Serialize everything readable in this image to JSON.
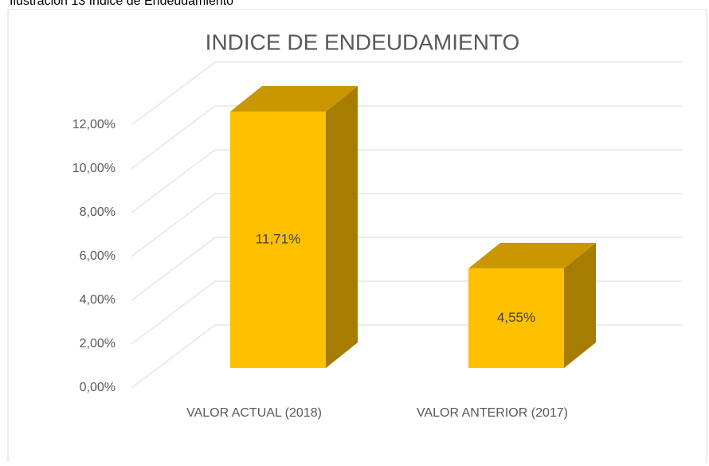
{
  "chart_data": {
    "type": "bar3d",
    "caption": "Ilustración 13 Indice de Endeudamiento",
    "title": "INDICE DE ENDEUDAMIENTO",
    "categories": [
      "VALOR ACTUAL (2018)",
      "VALOR ANTERIOR (2017)"
    ],
    "values": [
      11.71,
      4.55
    ],
    "value_labels": [
      "11,71%",
      "4,55%"
    ],
    "color": "#ffc000",
    "ylim": [
      0,
      12
    ],
    "yticks": [
      {
        "value": 0,
        "label": "0,00%"
      },
      {
        "value": 2,
        "label": "2,00%"
      },
      {
        "value": 4,
        "label": "4,00%"
      },
      {
        "value": 6,
        "label": "6,00%"
      },
      {
        "value": 8,
        "label": "8,00%"
      },
      {
        "value": 10,
        "label": "10,00%"
      },
      {
        "value": 12,
        "label": "12,00%"
      }
    ],
    "grid": true
  }
}
